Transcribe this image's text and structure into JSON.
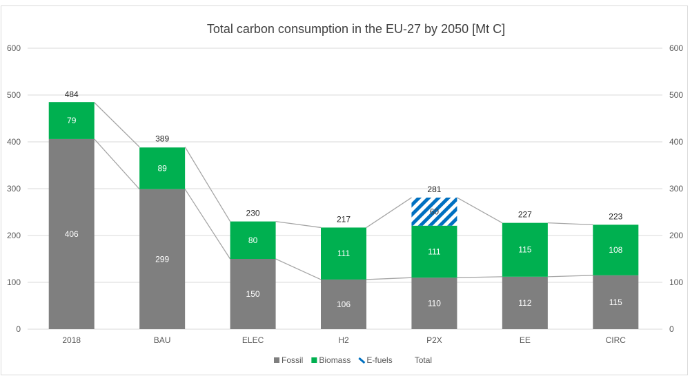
{
  "chart_data": {
    "type": "bar",
    "stacked": true,
    "title": "Total carbon consumption  in the EU-27 by 2050 [Mt C]",
    "categories": [
      "2018",
      "BAU",
      "ELEC",
      "H2",
      "P2X",
      "EE",
      "CIRC"
    ],
    "series": [
      {
        "name": "Fossil",
        "color": "#7f7f7f",
        "values": [
          406,
          299,
          150,
          106,
          110,
          112,
          115
        ]
      },
      {
        "name": "Biomass",
        "color": "#00b050",
        "values": [
          79,
          89,
          80,
          111,
          111,
          115,
          108
        ]
      },
      {
        "name": "E-fuels",
        "color": "#0070c0",
        "pattern": "diagonal-stripes",
        "values": [
          0,
          0,
          0,
          0,
          60,
          0,
          0
        ]
      }
    ],
    "totals": {
      "name": "Total",
      "values": [
        484,
        389,
        230,
        217,
        281,
        227,
        223
      ]
    },
    "ylim": [
      0,
      600
    ],
    "yticks": [
      0,
      100,
      200,
      300,
      400,
      500,
      600
    ],
    "secondary_y_axis": true,
    "grid": true,
    "legend_position": "bottom",
    "connector_lines": true
  }
}
